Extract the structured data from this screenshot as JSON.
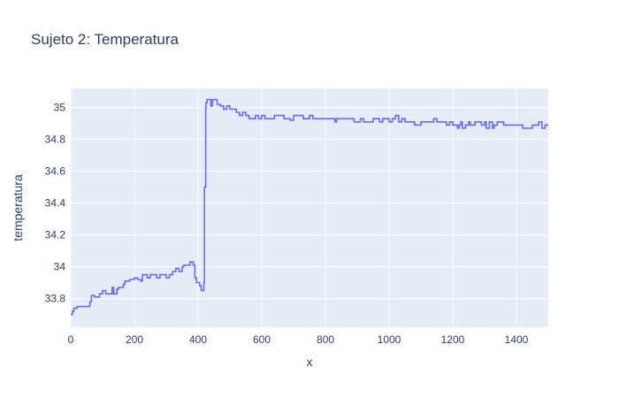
{
  "chart_data": {
    "type": "line",
    "line_shape": "step",
    "title": "Sujeto 2: Temperatura",
    "xlabel": "x",
    "ylabel": "temperatura",
    "xlim": [
      0,
      1500
    ],
    "ylim": [
      33.62,
      35.12
    ],
    "x_ticks": [
      0,
      200,
      400,
      600,
      800,
      1000,
      1200,
      1400
    ],
    "y_ticks": [
      33.8,
      34,
      34.2,
      34.4,
      34.6,
      34.8,
      35
    ],
    "x_tick_labels": [
      "0",
      "200",
      "400",
      "600",
      "800",
      "1000",
      "1200",
      "1400"
    ],
    "y_tick_labels": [
      "33.8",
      "34",
      "34.2",
      "34.4",
      "34.6",
      "34.8",
      "35"
    ],
    "grid": true,
    "background_color": "#e5ecf6",
    "line_color": "#636efa",
    "series": [
      {
        "x": [
          0,
          5,
          10,
          20,
          50,
          60,
          65,
          75,
          90,
          100,
          110,
          120,
          130,
          135,
          145,
          150,
          165,
          170,
          180,
          185,
          200,
          210,
          220,
          225,
          240,
          250,
          260,
          270,
          280,
          300,
          310,
          320,
          330,
          340,
          350,
          355,
          365,
          375,
          385,
          390,
          395,
          405,
          410,
          415,
          418,
          420,
          424,
          425,
          428,
          430,
          440,
          445,
          455,
          460,
          470,
          480,
          490,
          500,
          510,
          520,
          530,
          540,
          550,
          560,
          570,
          580,
          590,
          600,
          610,
          620,
          640,
          670,
          680,
          690,
          700,
          730,
          740,
          750,
          760,
          790,
          820,
          830,
          835,
          880,
          890,
          900,
          910,
          920,
          950,
          960,
          970,
          980,
          990,
          1000,
          1010,
          1020,
          1030,
          1040,
          1050,
          1060,
          1080,
          1100,
          1130,
          1140,
          1150,
          1170,
          1180,
          1190,
          1200,
          1210,
          1215,
          1220,
          1225,
          1230,
          1240,
          1250,
          1255,
          1260,
          1270,
          1280,
          1290,
          1300,
          1305,
          1315,
          1325,
          1330,
          1340,
          1350,
          1360,
          1370,
          1380,
          1400,
          1410,
          1420,
          1430,
          1450,
          1470,
          1480,
          1490,
          1500
        ],
        "y": [
          33.7,
          33.72,
          33.74,
          33.75,
          33.75,
          33.78,
          33.82,
          33.81,
          33.83,
          33.85,
          33.83,
          33.83,
          33.87,
          33.83,
          33.86,
          33.87,
          33.89,
          33.91,
          33.91,
          33.92,
          33.93,
          33.92,
          33.91,
          33.95,
          33.93,
          33.95,
          33.95,
          33.93,
          33.95,
          33.93,
          33.95,
          33.97,
          33.99,
          33.97,
          34.0,
          34.01,
          34.01,
          34.03,
          34.01,
          33.93,
          33.9,
          33.88,
          33.85,
          33.85,
          33.9,
          34.5,
          35.0,
          35.03,
          35.05,
          35.05,
          35.01,
          35.05,
          35.05,
          35.02,
          35.01,
          34.99,
          35.01,
          34.99,
          34.99,
          34.97,
          34.95,
          34.97,
          34.95,
          34.93,
          34.93,
          34.95,
          34.93,
          34.95,
          34.93,
          34.93,
          34.95,
          34.93,
          34.93,
          34.92,
          34.95,
          34.93,
          34.93,
          34.95,
          34.93,
          34.93,
          34.93,
          34.91,
          34.93,
          34.93,
          34.91,
          34.91,
          34.93,
          34.91,
          34.93,
          34.93,
          34.91,
          34.93,
          34.93,
          34.91,
          34.93,
          34.95,
          34.91,
          34.93,
          34.91,
          34.91,
          34.89,
          34.91,
          34.91,
          34.93,
          34.91,
          34.91,
          34.89,
          34.91,
          34.89,
          34.89,
          34.87,
          34.89,
          34.91,
          34.87,
          34.89,
          34.91,
          34.89,
          34.89,
          34.91,
          34.91,
          34.89,
          34.91,
          34.87,
          34.91,
          34.87,
          34.89,
          34.91,
          34.91,
          34.89,
          34.89,
          34.89,
          34.89,
          34.89,
          34.87,
          34.87,
          34.89,
          34.91,
          34.87,
          34.89,
          34.89
        ]
      }
    ]
  }
}
